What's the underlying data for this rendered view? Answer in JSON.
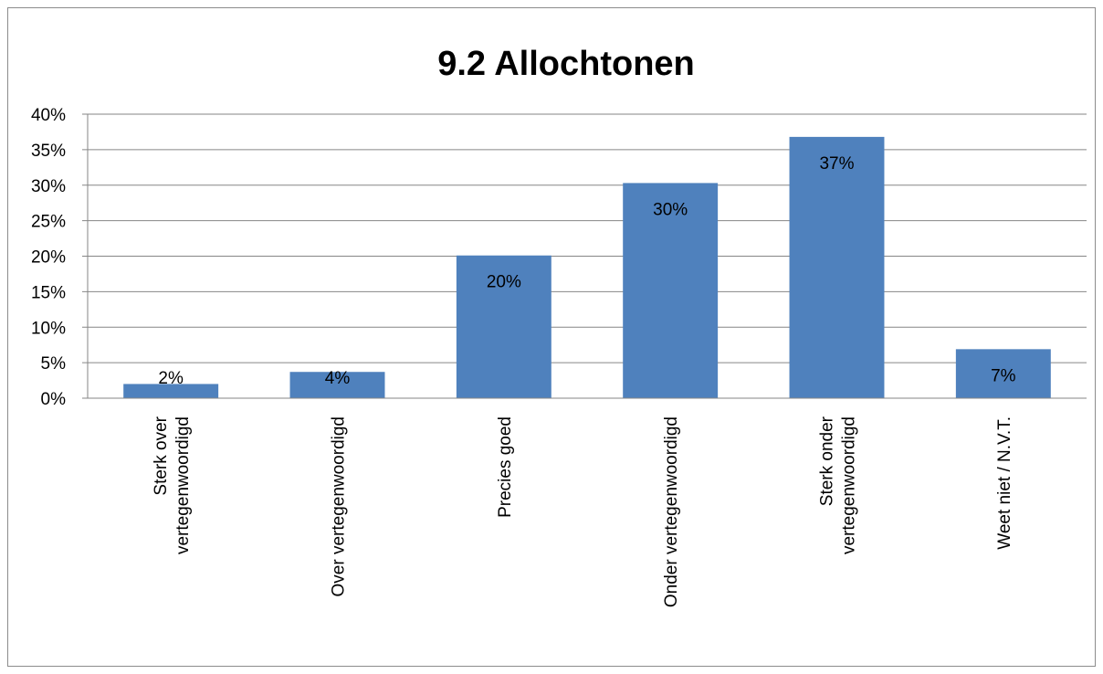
{
  "chart_data": {
    "type": "bar",
    "title": "9.2 Allochtonen",
    "xlabel": "",
    "ylabel": "",
    "categories": [
      [
        "Sterk over",
        "vertegenwoordigd"
      ],
      [
        "Over vertegenwoordigd"
      ],
      [
        "Precies goed"
      ],
      [
        "Onder vertegenwoordigd"
      ],
      [
        "Sterk onder",
        "vertegenwoordigd"
      ],
      [
        "Weet niet / N.V.T."
      ]
    ],
    "values": [
      0.02,
      0.037,
      0.201,
      0.303,
      0.368,
      0.069
    ],
    "data_labels": [
      "2%",
      "4%",
      "20%",
      "30%",
      "37%",
      "7%"
    ],
    "ylim": [
      0,
      0.4
    ],
    "y_ticks": [
      0,
      0.05,
      0.1,
      0.15,
      0.2,
      0.25,
      0.3,
      0.35,
      0.4
    ],
    "y_tick_labels": [
      "0%",
      "5%",
      "10%",
      "15%",
      "20%",
      "25%",
      "30%",
      "35%",
      "40%"
    ],
    "grid": true,
    "legend": "none",
    "colors": {
      "bar": "#4f81bd",
      "grid": "#868686",
      "frame": "#8c8c8c"
    }
  }
}
